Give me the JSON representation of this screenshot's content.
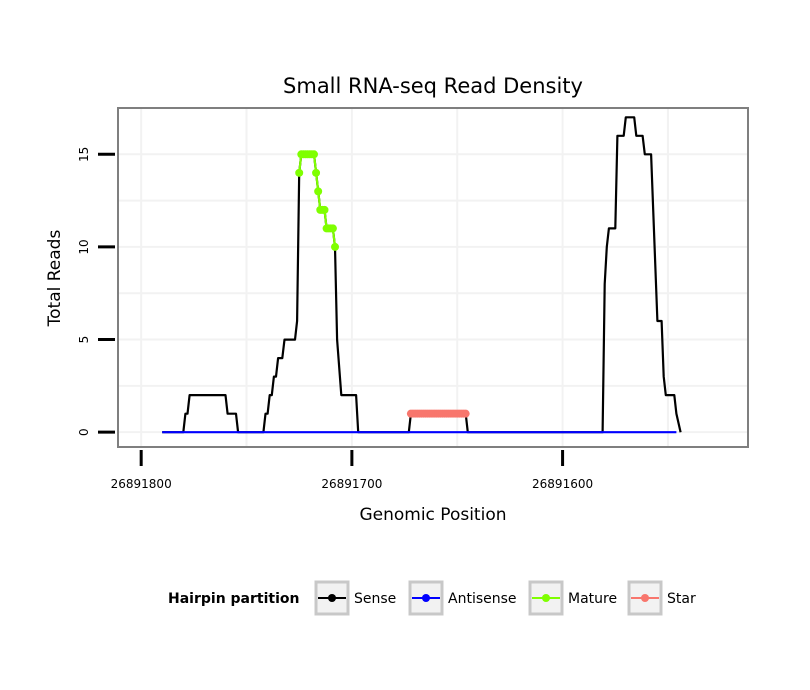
{
  "chart_data": {
    "type": "line",
    "title": "Small RNA-seq Read Density",
    "xlabel": "Genomic Position",
    "ylabel": "Total Reads",
    "x_reversed": true,
    "xlim": [
      26891811,
      26891512
    ],
    "ylim": [
      -0.8,
      17.5
    ],
    "x_ticks": [
      {
        "value": 26891800,
        "label": "26891800"
      },
      {
        "value": 26891700,
        "label": "26891700"
      },
      {
        "value": 26891600,
        "label": "26891600"
      }
    ],
    "y_ticks": [
      {
        "value": 0,
        "label": "0"
      },
      {
        "value": 5,
        "label": "5"
      },
      {
        "value": 10,
        "label": "10"
      },
      {
        "value": 15,
        "label": "15"
      }
    ],
    "legend_title": "Hairpin partition",
    "legend_position": "bottom",
    "grid": true,
    "series": [
      {
        "name": "Sense",
        "color": "#000000",
        "markers": false,
        "points": [
          [
            26891790,
            0
          ],
          [
            26891780,
            0
          ],
          [
            26891779,
            1
          ],
          [
            26891778,
            1
          ],
          [
            26891777,
            2
          ],
          [
            26891776,
            2
          ],
          [
            26891760,
            2
          ],
          [
            26891759,
            1
          ],
          [
            26891758,
            1
          ],
          [
            26891755,
            1
          ],
          [
            26891754,
            0
          ],
          [
            26891742,
            0
          ],
          [
            26891741,
            1
          ],
          [
            26891740,
            1
          ],
          [
            26891739,
            2
          ],
          [
            26891738,
            2
          ],
          [
            26891737,
            3
          ],
          [
            26891736,
            3
          ],
          [
            26891735,
            4
          ],
          [
            26891733,
            4
          ],
          [
            26891732,
            5
          ],
          [
            26891727,
            5
          ],
          [
            26891726,
            6
          ],
          [
            26891725,
            14
          ],
          [
            26891724,
            15
          ],
          [
            26891718,
            15
          ],
          [
            26891717,
            14
          ],
          [
            26891716,
            13
          ],
          [
            26891715,
            12
          ],
          [
            26891713,
            12
          ],
          [
            26891712,
            11
          ],
          [
            26891709,
            11
          ],
          [
            26891708,
            10
          ],
          [
            26891707,
            5
          ],
          [
            26891705,
            2
          ],
          [
            26891698,
            2
          ],
          [
            26891697,
            0
          ],
          [
            26891673,
            0
          ],
          [
            26891672,
            1
          ],
          [
            26891646,
            1
          ],
          [
            26891645,
            0
          ],
          [
            26891581,
            0
          ],
          [
            26891580,
            8
          ],
          [
            26891579,
            10
          ],
          [
            26891578,
            11
          ],
          [
            26891575,
            11
          ],
          [
            26891574,
            16
          ],
          [
            26891571,
            16
          ],
          [
            26891570,
            17
          ],
          [
            26891566,
            17
          ],
          [
            26891565,
            16
          ],
          [
            26891562,
            16
          ],
          [
            26891561,
            15
          ],
          [
            26891558,
            15
          ],
          [
            26891557,
            12
          ],
          [
            26891556,
            9
          ],
          [
            26891555,
            6
          ],
          [
            26891553,
            6
          ],
          [
            26891552,
            3
          ],
          [
            26891551,
            2
          ],
          [
            26891547,
            2
          ],
          [
            26891546,
            1
          ],
          [
            26891544,
            0
          ]
        ]
      },
      {
        "name": "Antisense",
        "color": "#0000ff",
        "markers": false,
        "points": [
          [
            26891790,
            0
          ],
          [
            26891546,
            0
          ]
        ]
      },
      {
        "name": "Mature",
        "color": "#7fff00",
        "markers": true,
        "points": [
          [
            26891725,
            14
          ],
          [
            26891724,
            15
          ],
          [
            26891723,
            15
          ],
          [
            26891722,
            15
          ],
          [
            26891721,
            15
          ],
          [
            26891720,
            15
          ],
          [
            26891719,
            15
          ],
          [
            26891718,
            15
          ],
          [
            26891717,
            14
          ],
          [
            26891716,
            13
          ],
          [
            26891715,
            12
          ],
          [
            26891714,
            12
          ],
          [
            26891713,
            12
          ],
          [
            26891712,
            11
          ],
          [
            26891711,
            11
          ],
          [
            26891710,
            11
          ],
          [
            26891709,
            11
          ],
          [
            26891708,
            10
          ]
        ]
      },
      {
        "name": "Star",
        "color": "#f8766d",
        "markers": true,
        "points": [
          [
            26891672,
            1
          ],
          [
            26891671,
            1
          ],
          [
            26891670,
            1
          ],
          [
            26891669,
            1
          ],
          [
            26891668,
            1
          ],
          [
            26891667,
            1
          ],
          [
            26891666,
            1
          ],
          [
            26891665,
            1
          ],
          [
            26891664,
            1
          ],
          [
            26891663,
            1
          ],
          [
            26891662,
            1
          ],
          [
            26891661,
            1
          ],
          [
            26891660,
            1
          ],
          [
            26891659,
            1
          ],
          [
            26891658,
            1
          ],
          [
            26891657,
            1
          ],
          [
            26891656,
            1
          ],
          [
            26891655,
            1
          ],
          [
            26891654,
            1
          ],
          [
            26891653,
            1
          ],
          [
            26891652,
            1
          ],
          [
            26891651,
            1
          ],
          [
            26891650,
            1
          ],
          [
            26891649,
            1
          ],
          [
            26891648,
            1
          ],
          [
            26891647,
            1
          ],
          [
            26891646,
            1
          ]
        ]
      }
    ]
  }
}
